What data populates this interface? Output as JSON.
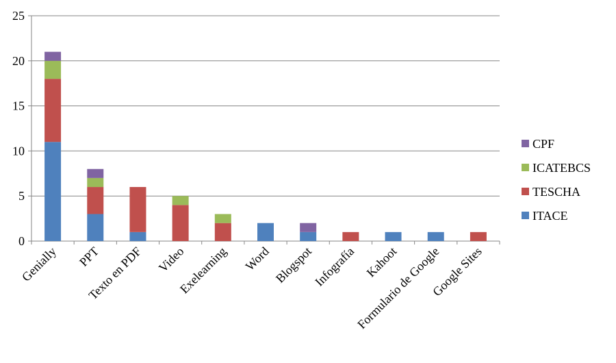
{
  "chart_data": {
    "type": "stacked_bar",
    "categories": [
      "Genially",
      "PPT",
      "Texto en PDF",
      "Video",
      "Exelearning",
      "Word",
      "Blogspot",
      "Infografía",
      "Kahoot",
      "Formulario de Google",
      "Google Sites"
    ],
    "series": [
      {
        "name": "ITACE",
        "color": "#4F81BD",
        "values": [
          11,
          3,
          1,
          0,
          0,
          2,
          1,
          0,
          1,
          1,
          0
        ]
      },
      {
        "name": "TESCHA",
        "color": "#C0504D",
        "values": [
          7,
          3,
          5,
          4,
          2,
          0,
          0,
          1,
          0,
          0,
          1
        ]
      },
      {
        "name": "ICATEBCS",
        "color": "#9BBB59",
        "values": [
          2,
          1,
          0,
          1,
          1,
          0,
          0,
          0,
          0,
          0,
          0
        ]
      },
      {
        "name": "CPF",
        "color": "#8064A2",
        "values": [
          1,
          1,
          0,
          0,
          0,
          0,
          1,
          0,
          0,
          0,
          0
        ]
      }
    ],
    "ylim": [
      0,
      25
    ],
    "yticks": [
      0,
      5,
      10,
      15,
      20,
      25
    ],
    "grid": true,
    "legend": "right"
  }
}
